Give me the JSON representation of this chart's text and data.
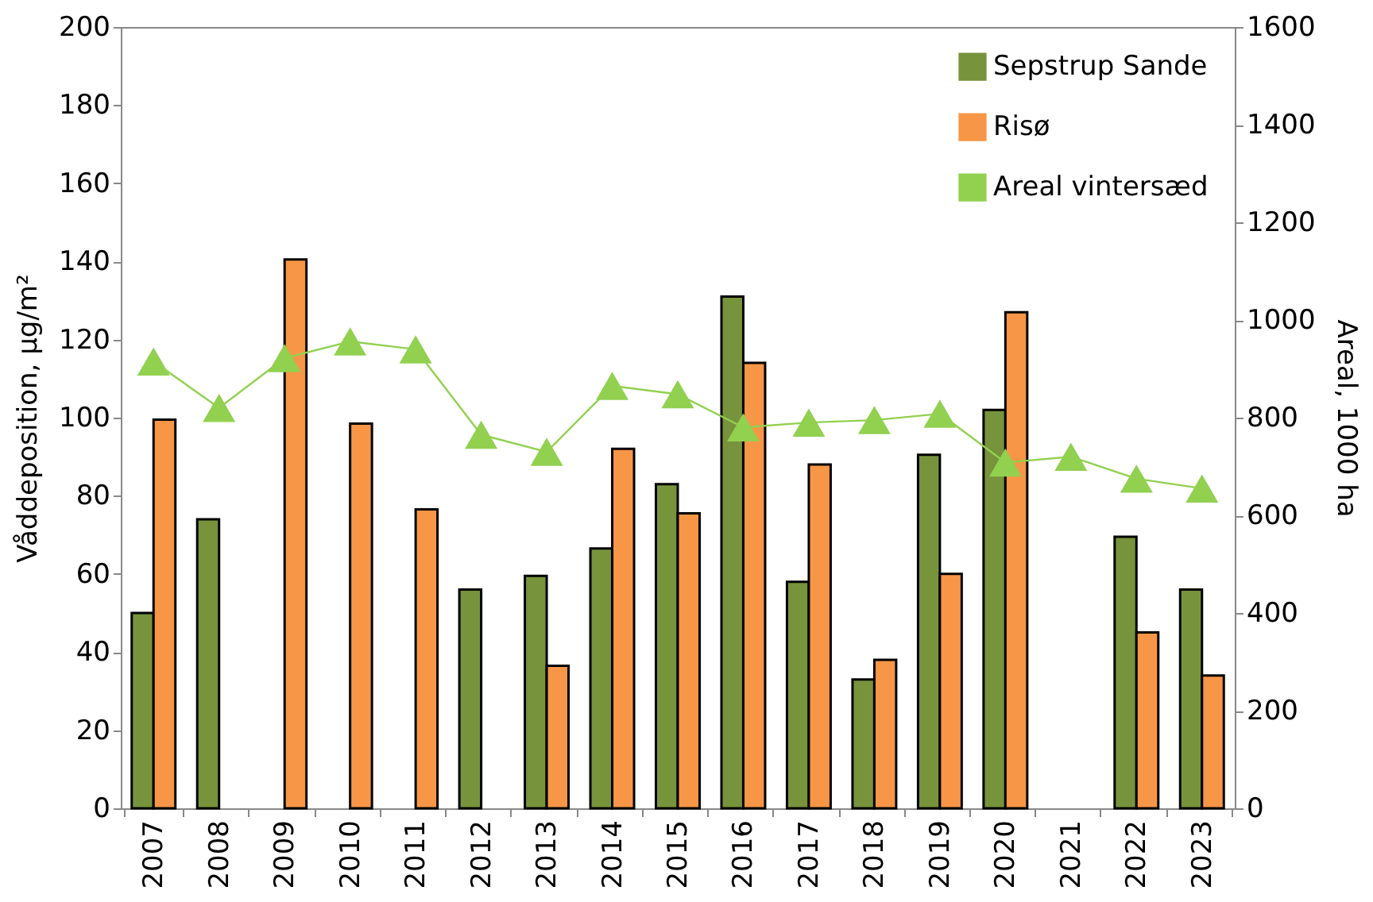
{
  "chart_data": {
    "type": "bar",
    "ylabel": "Våddeposition, µg/m²",
    "y2label": "Areal, 1000 ha",
    "categories": [
      "2007",
      "2008",
      "2009",
      "2010",
      "2011",
      "2012",
      "2013",
      "2014",
      "2015",
      "2016",
      "2017",
      "2018",
      "2019",
      "2020",
      "2021",
      "2022",
      "2023"
    ],
    "series": [
      {
        "name": "Sepstrup Sande",
        "color": "#77933c",
        "values": [
          50,
          74,
          null,
          null,
          null,
          56,
          59.5,
          66.5,
          83,
          131,
          58,
          33,
          90.5,
          102,
          null,
          69.5,
          56
        ]
      },
      {
        "name": "Risø",
        "color": "#f79646",
        "values": [
          99.5,
          null,
          140.5,
          98.5,
          76.5,
          null,
          36.5,
          92,
          75.5,
          114,
          88,
          38,
          60,
          127,
          null,
          45,
          34
        ]
      },
      {
        "name": "Areal vintersæd",
        "color": "#92d050",
        "type": "line",
        "axis": "y2",
        "marker": "triangle",
        "values": [
          915,
          820,
          922,
          956,
          940,
          765,
          730,
          865,
          848,
          780,
          790,
          795,
          808,
          708,
          720,
          675,
          655
        ]
      }
    ],
    "ylim": [
      0,
      200
    ],
    "yticks": [
      0,
      20,
      40,
      60,
      80,
      100,
      120,
      140,
      160,
      180,
      200
    ],
    "y2lim": [
      0,
      1600
    ],
    "y2ticks": [
      0,
      200,
      400,
      600,
      800,
      1000,
      1200,
      1400,
      1600
    ],
    "grid": false,
    "legend": "top right"
  }
}
